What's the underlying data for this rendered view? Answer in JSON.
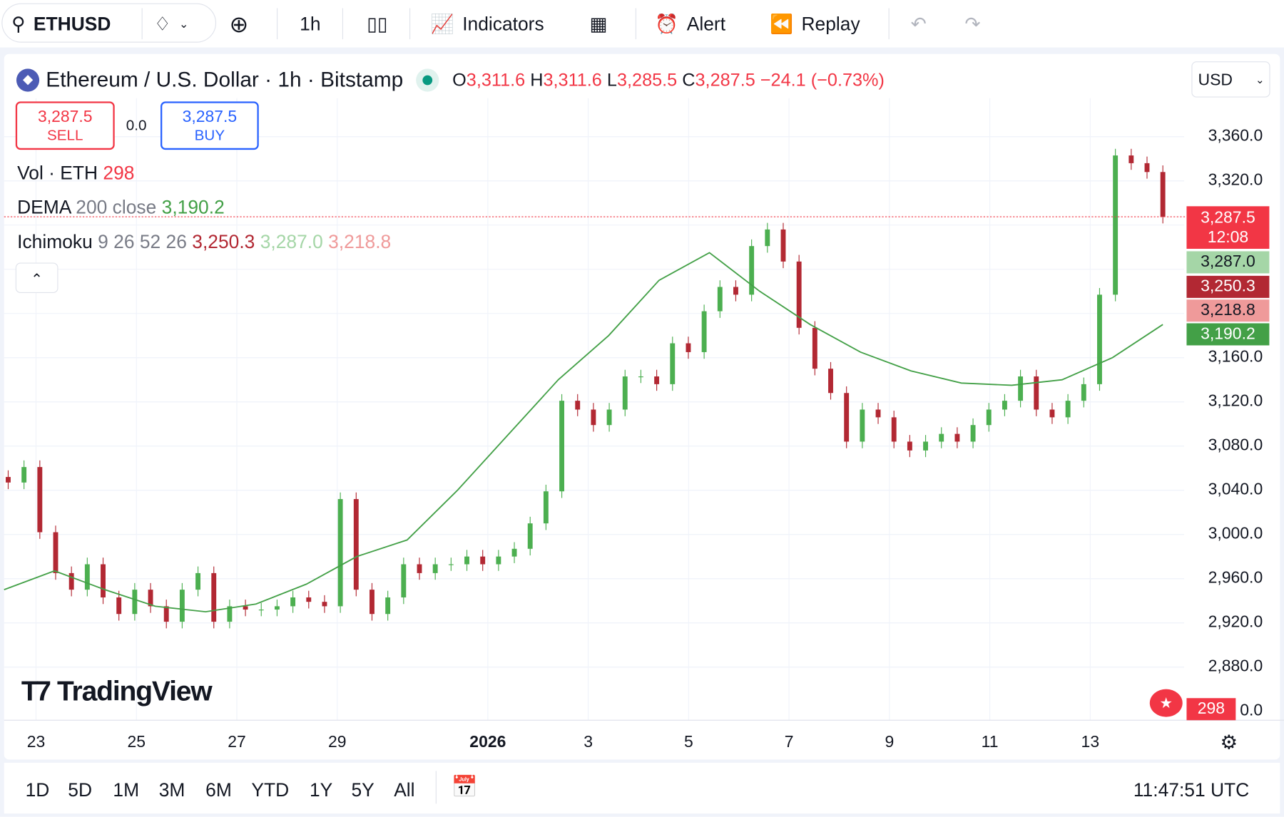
{
  "toolbar": {
    "symbol": "ETHUSD",
    "interval": "1h",
    "indicators": "Indicators",
    "alert": "Alert",
    "replay": "Replay"
  },
  "header": {
    "title": "Ethereum / U.S. Dollar · 1h · Bitstamp",
    "o_label": "O",
    "o": "3,311.6",
    "h_label": "H",
    "h": "3,311.6",
    "l_label": "L",
    "l": "3,285.5",
    "c_label": "C",
    "c": "3,287.5",
    "change": "−24.1 (−0.73%)",
    "currency": "USD"
  },
  "trade": {
    "sell_price": "3,287.5",
    "sell": "SELL",
    "spread": "0.0",
    "buy_price": "3,287.5",
    "buy": "BUY"
  },
  "indicators": {
    "vol": {
      "name": "Vol · ETH",
      "value": "298"
    },
    "dema": {
      "name": "DEMA",
      "params": "200 close",
      "value": "3,190.2"
    },
    "ichimoku": {
      "name": "Ichimoku",
      "params": "9 26 52 26",
      "v1": "3,250.3",
      "v2": "3,287.0",
      "v3": "3,218.8"
    }
  },
  "badges": {
    "last": "3,287.5",
    "countdown": "12:08",
    "ich_lead": "3,287.0",
    "ich_base": "3,250.3",
    "ich_lag": "3,218.8",
    "dema": "3,190.2",
    "volume": "298",
    "vol_axis": "0.0"
  },
  "logo": "TradingView",
  "colors": {
    "up": "#089981",
    "down": "#f23645",
    "candle_up": "#4caf50",
    "candle_down": "#b22833",
    "dema": "#43a047",
    "cloud_up": "#a5d6a7",
    "cloud_down": "#ef9a9a"
  },
  "ranges": [
    "1D",
    "5D",
    "1M",
    "3M",
    "6M",
    "YTD",
    "1Y",
    "5Y",
    "All"
  ],
  "clock": "11:47:51 UTC",
  "chart_data": {
    "type": "candlestick",
    "ylim": [
      2860,
      3380
    ],
    "y_ticks": [
      "3,360.0",
      "3,320.0",
      "3,160.0",
      "3,120.0",
      "3,080.0",
      "3,040.0",
      "3,000.0",
      "2,960.0",
      "2,920.0",
      "2,880.0"
    ],
    "y_tick_values": [
      3360,
      3320,
      3160,
      3120,
      3080,
      3040,
      3000,
      2960,
      2920,
      2880
    ],
    "x_ticks": [
      "23",
      "25",
      "27",
      "29",
      "2026",
      "3",
      "5",
      "7",
      "9",
      "11",
      "13"
    ],
    "x_tick_days": [
      1,
      3,
      5,
      7,
      10,
      12,
      14,
      16,
      18,
      20,
      22
    ],
    "close": [
      3047,
      3061,
      3002,
      2965,
      2950,
      2973,
      2943,
      2928,
      2950,
      2935,
      2921,
      2950,
      2965,
      2921,
      2935,
      2932,
      2932,
      2935,
      2943,
      2939,
      2935,
      3032,
      2950,
      2928,
      2943,
      2973,
      2965,
      2973,
      2973,
      2980,
      2973,
      2980,
      2987,
      3010,
      3039,
      3121,
      3113,
      3099,
      3113,
      3143,
      3143,
      3136,
      3173,
      3165,
      3202,
      3224,
      3217,
      3261,
      3276,
      3247,
      3187,
      3150,
      3128,
      3084,
      3113,
      3106,
      3084,
      3076,
      3084,
      3091,
      3084,
      3099,
      3113,
      3121,
      3143,
      3113,
      3106,
      3121,
      3136,
      3217,
      3343,
      3336,
      3328,
      3287.5
    ],
    "dema": [
      2950,
      2967,
      2950,
      2935,
      2930,
      2937,
      2955,
      2980,
      2995,
      3040,
      3090,
      3140,
      3180,
      3230,
      3255,
      3220,
      3190,
      3165,
      3148,
      3137,
      3135,
      3140,
      3160,
      3190
    ],
    "last_price": 3287.5
  }
}
